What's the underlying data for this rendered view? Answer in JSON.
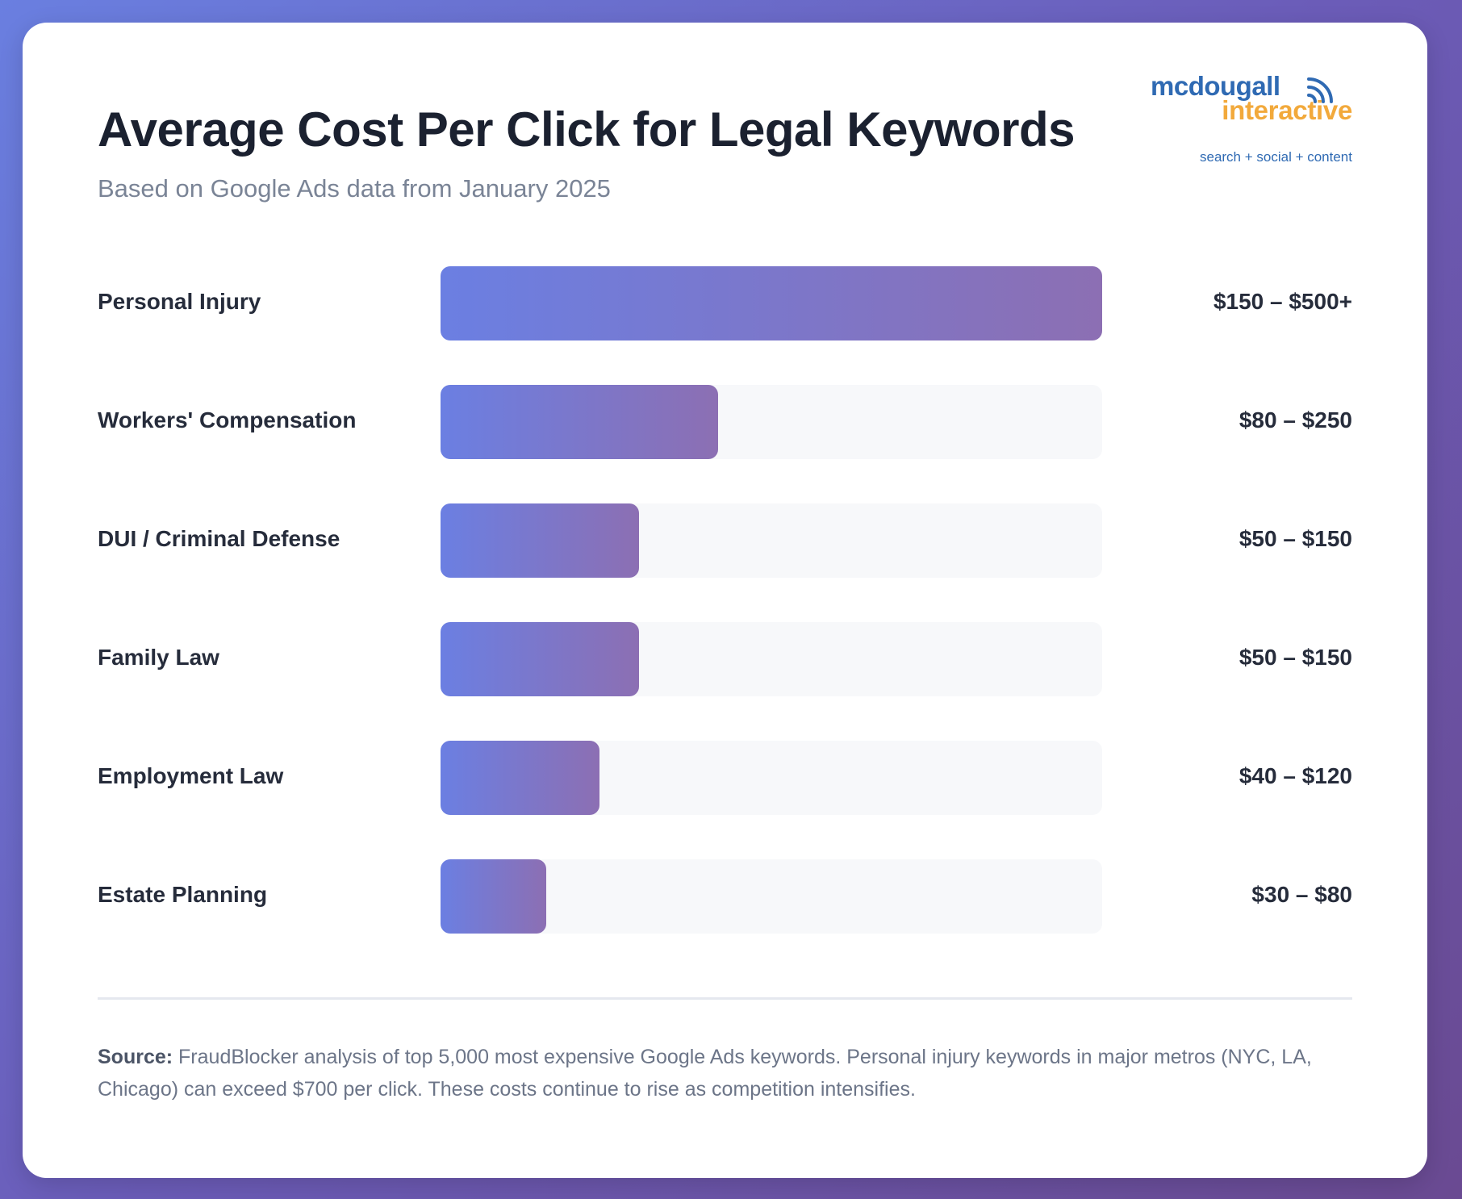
{
  "header": {
    "title": "Average Cost Per Click for Legal Keywords",
    "subtitle": "Based on Google Ads data from January 2025"
  },
  "logo": {
    "line1": "mcdougall",
    "line2": "interactive",
    "tagline": "search + social + content",
    "icon": "signal-waves-icon",
    "colors": {
      "blue": "#2f6ab3",
      "orange": "#f2a93b"
    }
  },
  "chart_data": {
    "type": "bar",
    "orientation": "horizontal",
    "categories": [
      "Personal Injury",
      "Workers' Compensation",
      "DUI / Criminal Defense",
      "Family Law",
      "Employment Law",
      "Estate Planning"
    ],
    "values": [
      500,
      210,
      150,
      150,
      120,
      80
    ],
    "value_labels": [
      "$150 – $500+",
      "$80 – $250",
      "$50 – $150",
      "$50 – $150",
      "$40 – $120",
      "$30 – $80"
    ],
    "xlim": [
      0,
      500
    ],
    "title": "Average Cost Per Click for Legal Keywords",
    "subtitle": "Based on Google Ads data from January 2025",
    "grid": false,
    "bar_gradient": [
      "#6b7fe2",
      "#8c6fb3"
    ]
  },
  "footer": {
    "source_label": "Source:",
    "source_text": " FraudBlocker analysis of top 5,000 most expensive Google Ads keywords. Personal injury keywords in major metros (NYC, LA, Chicago) can exceed $700 per click. These costs continue to rise as competition intensifies."
  }
}
